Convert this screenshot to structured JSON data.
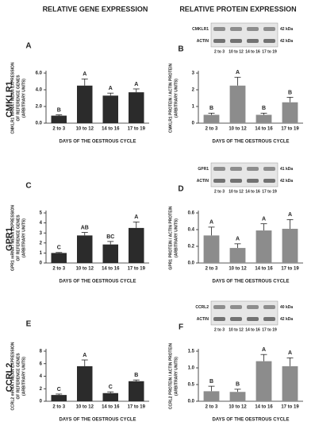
{
  "column_titles": [
    "RELATIVE GENE EXPRESSION",
    "RELATIVE PROTEIN EXPRESSION"
  ],
  "row_labels": [
    "CMKLR1",
    "GPR1",
    "CCRL2"
  ],
  "chart_data": [
    {
      "type": "bar",
      "panel": "A",
      "ylabel": [
        "CMKLR1 mRNA / MEAN EXPRESSION",
        "OF REFERENCE GENES",
        "(ARBITRARY UNITS)"
      ],
      "xlabel": "DAYS OF THE OESTROUS CYCLE",
      "categories": [
        "2 to 3",
        "10 to 12",
        "14 to 16",
        "17 to 19"
      ],
      "values": [
        0.9,
        4.5,
        3.3,
        3.7
      ],
      "errors": [
        0.1,
        0.8,
        0.3,
        0.4
      ],
      "annotations": [
        "B",
        "A",
        "A",
        "A"
      ],
      "color": "#2b2b2b",
      "ylim": [
        0,
        6
      ],
      "yticks": [
        {
          "value": 0,
          "label": "0.0"
        },
        {
          "value": 2,
          "label": "2.0"
        },
        {
          "value": 4,
          "label": "4.0"
        },
        {
          "value": 6,
          "label": "6.0"
        }
      ]
    },
    {
      "type": "bar",
      "panel": "B",
      "ylabel": [
        "CMKLR1 PROTEIN / ACTIN PROTEIN",
        "(ARBITRARY UNITS)"
      ],
      "xlabel": "DAYS OF THE OESTROUS CYCLE",
      "categories": [
        "2 to 3",
        "10 to 12",
        "14 to 16",
        "17 to 19"
      ],
      "values": [
        0.5,
        2.25,
        0.5,
        1.25
      ],
      "errors": [
        0.1,
        0.5,
        0.1,
        0.3
      ],
      "annotations": [
        "B",
        "A",
        "B",
        "B"
      ],
      "color": "#8c8c8c",
      "ylim": [
        0,
        3
      ],
      "yticks": [
        0,
        1,
        2,
        3
      ],
      "blot": {
        "labels": [
          "CMKLR1",
          "ACTIN"
        ],
        "sizes": [
          "42 kDa",
          "42 kDa"
        ]
      }
    },
    {
      "type": "bar",
      "panel": "C",
      "ylabel": [
        "GPR1 mRNA / MEAN EXPRESSION",
        "OF REFERENCE GENES",
        "(ARBITRARY UNITS)"
      ],
      "xlabel": "DAYS OF THE OESTROUS CYCLE",
      "categories": [
        "2 to 3",
        "10 to 12",
        "14 to 16",
        "17 to 19"
      ],
      "values": [
        1.0,
        2.75,
        1.85,
        3.5
      ],
      "errors": [
        0.05,
        0.3,
        0.3,
        0.6
      ],
      "annotations": [
        "C",
        "AB",
        "BC",
        "A"
      ],
      "color": "#2b2b2b",
      "ylim": [
        0,
        5
      ],
      "yticks": [
        0,
        1,
        2,
        3,
        4,
        5
      ]
    },
    {
      "type": "bar",
      "panel": "D",
      "ylabel": [
        "GPR1 PROTEIN / ACTIN PROTEIN",
        "(ARBITRARY UNITS)"
      ],
      "xlabel": "DAYS OF THE OESTROUS CYCLE",
      "categories": [
        "2 to 3",
        "10 to 12",
        "14 to 16",
        "17 to 19"
      ],
      "values": [
        0.33,
        0.18,
        0.39,
        0.41
      ],
      "errors": [
        0.1,
        0.05,
        0.08,
        0.11
      ],
      "annotations": [
        "A",
        "A",
        "A",
        "A"
      ],
      "color": "#8c8c8c",
      "ylim": [
        0,
        0.6
      ],
      "yticks": [
        {
          "value": 0,
          "label": "0.0"
        },
        0.2,
        0.4,
        0.6
      ],
      "blot": {
        "labels": [
          "GPR1",
          "ACTIN"
        ],
        "sizes": [
          "41 kDa",
          "42 kDa"
        ]
      }
    },
    {
      "type": "bar",
      "panel": "E",
      "ylabel": [
        "CCRL2 mRNA / MEAN EXPRESSION",
        "OF REFERENCE GENES",
        "(ARBITRARY UNITS)"
      ],
      "xlabel": "DAYS OF THE OESTROUS CYCLE",
      "categories": [
        "2 to 3",
        "10 to 12",
        "14 to 16",
        "17 to 19"
      ],
      "values": [
        1.0,
        5.6,
        1.3,
        3.2
      ],
      "errors": [
        0.15,
        1.0,
        0.2,
        0.2
      ],
      "annotations": [
        "C",
        "A",
        "C",
        "B"
      ],
      "color": "#2b2b2b",
      "ylim": [
        0,
        8
      ],
      "yticks": [
        0,
        2,
        4,
        6,
        8
      ]
    },
    {
      "type": "bar",
      "panel": "F",
      "ylabel": [
        "CCRL2 PROTEIN / ACTIN PROTEIN",
        "(ARBITRARY UNITS)"
      ],
      "xlabel": "DAYS OF THE OESTROUS CYCLE",
      "categories": [
        "2 to 3",
        "10 to 12",
        "14 to 16",
        "17 to 19"
      ],
      "values": [
        0.3,
        0.28,
        1.2,
        1.05
      ],
      "errors": [
        0.15,
        0.08,
        0.2,
        0.25
      ],
      "annotations": [
        "B",
        "B",
        "A",
        "A"
      ],
      "color": "#8c8c8c",
      "ylim": [
        0,
        1.5
      ],
      "yticks": [
        {
          "value": 0,
          "label": "0.0"
        },
        0.5,
        {
          "value": 1,
          "label": "1.0"
        },
        1.5
      ],
      "blot": {
        "labels": [
          "CCRL2",
          "ACTIN"
        ],
        "sizes": [
          "40 kDa",
          "42 kDa"
        ]
      }
    }
  ]
}
